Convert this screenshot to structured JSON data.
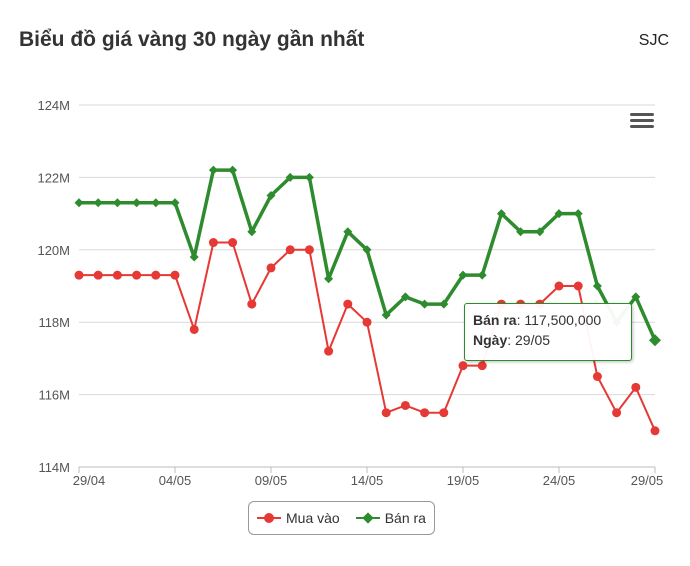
{
  "header": {
    "title": "Biểu đồ giá vàng 30 ngày gần nhất",
    "source": "SJC"
  },
  "colors": {
    "buy": "#e53935",
    "sell": "#2e8b2e",
    "grid": "#d9d9d9",
    "axis_text": "#555555"
  },
  "legend": {
    "buy_label": "Mua vào",
    "sell_label": "Bán ra"
  },
  "tooltip": {
    "series_label": "Bán ra",
    "series_value": "117,500,000",
    "date_label": "Ngày",
    "date_value": "29/05"
  },
  "menu_icon": "hamburger-menu-icon",
  "chart_data": {
    "type": "line",
    "x": [
      "29/04",
      "30/04",
      "01/05",
      "02/05",
      "03/05",
      "04/05",
      "05/05",
      "06/05",
      "07/05",
      "08/05",
      "09/05",
      "10/05",
      "11/05",
      "12/05",
      "13/05",
      "14/05",
      "15/05",
      "16/05",
      "17/05",
      "18/05",
      "19/05",
      "20/05",
      "21/05",
      "22/05",
      "23/05",
      "24/05",
      "25/05",
      "26/05",
      "27/05",
      "28/05",
      "29/05"
    ],
    "x_tick_labels": [
      "29/04",
      "04/05",
      "09/05",
      "14/05",
      "19/05",
      "24/05",
      "29/05"
    ],
    "y_tick_labels": [
      "114M",
      "116M",
      "118M",
      "120M",
      "122M",
      "124M"
    ],
    "ylim": [
      114000000,
      124000000
    ],
    "y_ticks": [
      114000000,
      116000000,
      118000000,
      120000000,
      122000000,
      124000000
    ],
    "grid": true,
    "legend_position": "bottom-center",
    "series": [
      {
        "name": "Mua vào",
        "values": [
          119300000,
          119300000,
          119300000,
          119300000,
          119300000,
          119300000,
          117800000,
          120200000,
          120200000,
          118500000,
          119500000,
          120000000,
          120000000,
          117200000,
          118500000,
          118000000,
          115500000,
          115700000,
          115500000,
          115500000,
          116800000,
          116800000,
          118500000,
          118500000,
          118500000,
          119000000,
          119000000,
          116500000,
          115500000,
          116200000,
          115000000
        ]
      },
      {
        "name": "Bán ra",
        "values": [
          121300000,
          121300000,
          121300000,
          121300000,
          121300000,
          121300000,
          119800000,
          122200000,
          122200000,
          120500000,
          121500000,
          122000000,
          122000000,
          119200000,
          120500000,
          120000000,
          118200000,
          118700000,
          118500000,
          118500000,
          119300000,
          119300000,
          121000000,
          120500000,
          120500000,
          121000000,
          121000000,
          119000000,
          118000000,
          118700000,
          117500000
        ]
      }
    ]
  }
}
